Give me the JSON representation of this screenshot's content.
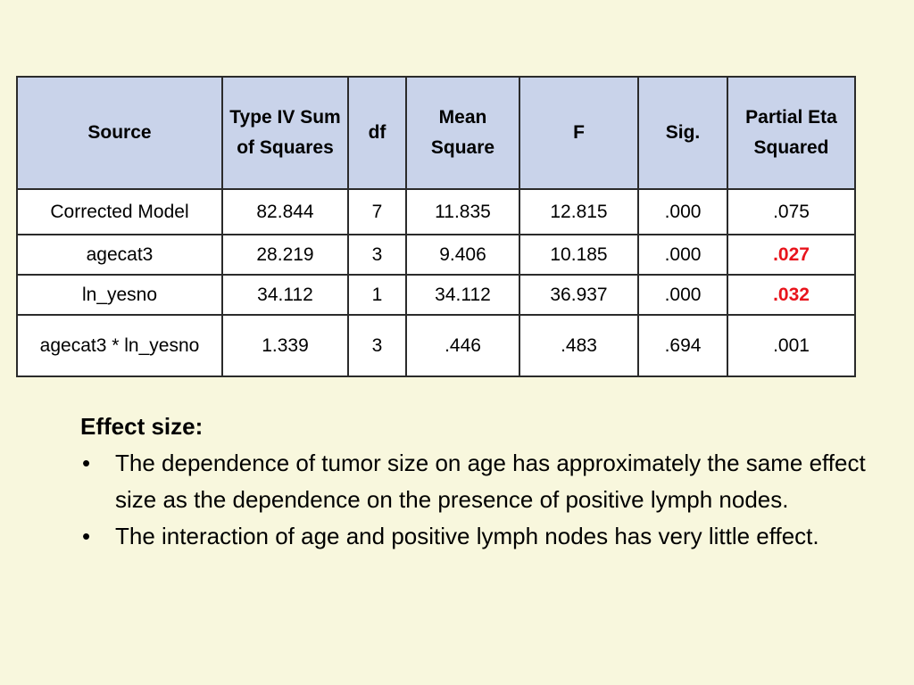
{
  "table": {
    "headers": {
      "source": "Source",
      "type_iv": "Type IV Sum of Squares",
      "df": "df",
      "mean_square": "Mean Square",
      "f": "F",
      "sig": "Sig.",
      "partial_eta": "Partial Eta Squared"
    },
    "rows": [
      {
        "source": "Corrected Model",
        "ss": "82.844",
        "df": "7",
        "ms": "11.835",
        "f": "12.815",
        "sig": ".000",
        "eta": ".075"
      },
      {
        "source": "agecat3",
        "ss": "28.219",
        "df": "3",
        "ms": "9.406",
        "f": "10.185",
        "sig": ".000",
        "eta": ".027"
      },
      {
        "source": "ln_yesno",
        "ss": "34.112",
        "df": "1",
        "ms": "34.112",
        "f": "36.937",
        "sig": ".000",
        "eta": ".032"
      },
      {
        "source": "agecat3 * ln_yesno",
        "ss": "1.339",
        "df": "3",
        "ms": ".446",
        "f": ".483",
        "sig": ".694",
        "eta": ".001"
      }
    ],
    "highlight_color": "#e8141c"
  },
  "notes": {
    "heading": "Effect size:",
    "bullet_symbol": "•",
    "bullets": [
      "The dependence of tumor size on age has approximately the same effect size as the dependence on the presence of positive lymph nodes.",
      "The interaction of age and positive lymph nodes has very little effect."
    ]
  }
}
